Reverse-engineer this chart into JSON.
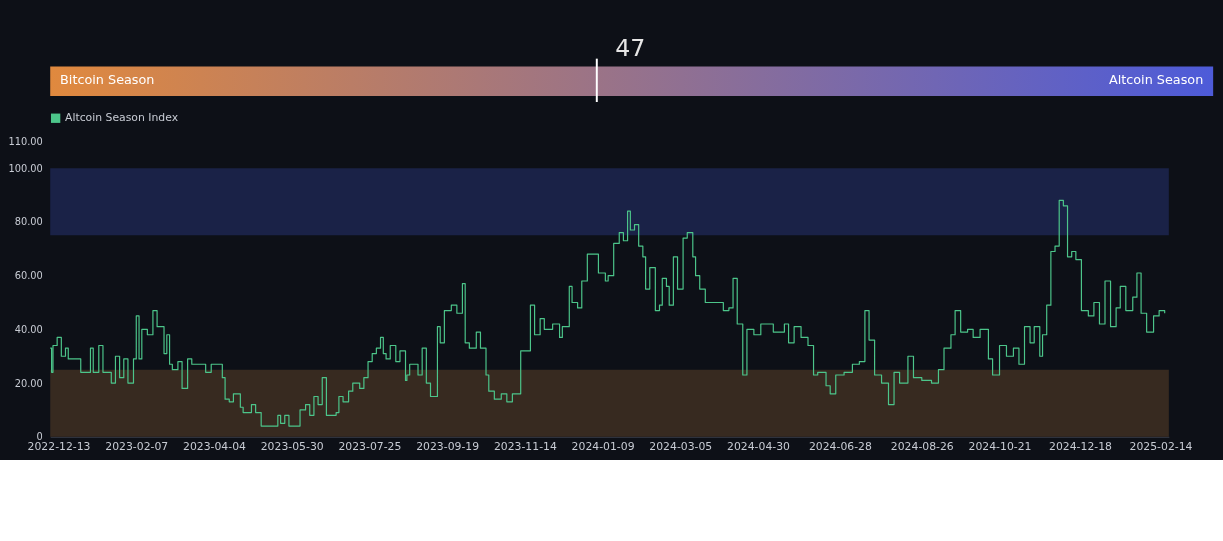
{
  "chart_data": [
    {
      "type": "other",
      "values": [
        47
      ],
      "value_labels": [
        "47"
      ],
      "annotations": [
        "Bitcoin Season",
        "Altcoin Season"
      ]
    },
    {
      "type": "step",
      "legend": "top",
      "grid": false,
      "line_style": "solid",
      "xlim": [
        "2022-12-07",
        "2025-02-20"
      ],
      "xticks": [
        "2022-12-13",
        "2023-02-07",
        "2023-04-04",
        "2023-05-30",
        "2023-07-25",
        "2023-09-19",
        "2023-11-14",
        "2024-01-09",
        "2024-03-05",
        "2024-04-30",
        "2024-06-28",
        "2024-08-26",
        "2024-10-21",
        "2024-12-18",
        "2025-02-14"
      ],
      "ylim": [
        0,
        110
      ],
      "yticks": [
        {
          "value": 0,
          "label": "0"
        },
        {
          "value": 20,
          "label": "20.00"
        },
        {
          "value": 40,
          "label": "40.00"
        },
        {
          "value": 60,
          "label": "60.00"
        },
        {
          "value": 80,
          "label": "80.00"
        },
        {
          "value": 100,
          "label": "100.00"
        },
        {
          "value": 110,
          "label": "110.00"
        }
      ],
      "bands": [
        {
          "axis": "y",
          "from": 75,
          "to": 100,
          "color": "#1a2247"
        },
        {
          "axis": "y",
          "from": 0,
          "to": 25,
          "color": "#372a20"
        }
      ],
      "series": [
        {
          "name": "Altcoin Season Index",
          "color": "#4cc58a",
          "x": [
            "2022-12-07",
            "2022-12-08",
            "2022-12-09",
            "2022-12-12",
            "2022-12-15",
            "2022-12-18",
            "2022-12-20",
            "2022-12-27",
            "2022-12-29",
            "2023-01-03",
            "2023-01-05",
            "2023-01-07",
            "2023-01-11",
            "2023-01-14",
            "2023-01-17",
            "2023-01-20",
            "2023-01-23",
            "2023-01-26",
            "2023-01-29",
            "2023-02-01",
            "2023-02-05",
            "2023-02-07",
            "2023-02-09",
            "2023-02-11",
            "2023-02-15",
            "2023-02-19",
            "2023-02-22",
            "2023-02-25",
            "2023-02-27",
            "2023-03-01",
            "2023-03-03",
            "2023-03-05",
            "2023-03-09",
            "2023-03-12",
            "2023-03-16",
            "2023-03-19",
            "2023-03-26",
            "2023-03-29",
            "2023-04-02",
            "2023-04-07",
            "2023-04-10",
            "2023-04-12",
            "2023-04-15",
            "2023-04-18",
            "2023-04-23",
            "2023-04-25",
            "2023-05-01",
            "2023-05-04",
            "2023-05-08",
            "2023-05-18",
            "2023-05-20",
            "2023-05-22",
            "2023-05-25",
            "2023-05-28",
            "2023-06-03",
            "2023-06-05",
            "2023-06-09",
            "2023-06-12",
            "2023-06-15",
            "2023-06-18",
            "2023-06-21",
            "2023-06-24",
            "2023-07-01",
            "2023-07-03",
            "2023-07-06",
            "2023-07-10",
            "2023-07-13",
            "2023-07-18",
            "2023-07-21",
            "2023-07-24",
            "2023-07-27",
            "2023-07-30",
            "2023-08-02",
            "2023-08-04",
            "2023-08-06",
            "2023-08-09",
            "2023-08-13",
            "2023-08-16",
            "2023-08-20",
            "2023-08-21",
            "2023-08-23",
            "2023-08-29",
            "2023-09-01",
            "2023-09-04",
            "2023-09-07",
            "2023-09-12",
            "2023-09-14",
            "2023-09-17",
            "2023-09-22",
            "2023-09-26",
            "2023-09-30",
            "2023-10-02",
            "2023-10-05",
            "2023-10-10",
            "2023-10-13",
            "2023-10-17",
            "2023-10-19",
            "2023-10-23",
            "2023-10-28",
            "2023-11-01",
            "2023-11-05",
            "2023-11-09",
            "2023-11-11",
            "2023-11-18",
            "2023-11-21",
            "2023-11-25",
            "2023-11-28",
            "2023-12-04",
            "2023-12-09",
            "2023-12-11",
            "2023-12-16",
            "2023-12-18",
            "2023-12-22",
            "2023-12-25",
            "2023-12-29",
            "2024-01-03",
            "2024-01-06",
            "2024-01-11",
            "2024-01-13",
            "2024-01-17",
            "2024-01-21",
            "2024-01-24",
            "2024-01-27",
            "2024-01-29",
            "2024-02-01",
            "2024-02-04",
            "2024-02-07",
            "2024-02-09",
            "2024-02-12",
            "2024-02-16",
            "2024-02-19",
            "2024-02-21",
            "2024-02-24",
            "2024-02-26",
            "2024-02-29",
            "2024-03-03",
            "2024-03-07",
            "2024-03-10",
            "2024-03-14",
            "2024-03-16",
            "2024-03-19",
            "2024-03-23",
            "2024-03-30",
            "2024-04-05",
            "2024-04-09",
            "2024-04-12",
            "2024-04-15",
            "2024-04-19",
            "2024-04-22",
            "2024-04-27",
            "2024-05-02",
            "2024-05-11",
            "2024-05-19",
            "2024-05-22",
            "2024-05-26",
            "2024-05-31",
            "2024-06-05",
            "2024-06-09",
            "2024-06-12",
            "2024-06-18",
            "2024-06-21",
            "2024-06-25",
            "2024-07-01",
            "2024-07-07",
            "2024-07-12",
            "2024-07-16",
            "2024-07-19",
            "2024-07-23",
            "2024-07-28",
            "2024-08-02",
            "2024-08-06",
            "2024-08-10",
            "2024-08-16",
            "2024-08-20",
            "2024-08-26",
            "2024-09-02",
            "2024-09-07",
            "2024-09-11",
            "2024-09-16",
            "2024-09-19",
            "2024-09-23",
            "2024-09-28",
            "2024-10-02",
            "2024-10-07",
            "2024-10-13",
            "2024-10-16",
            "2024-10-21",
            "2024-10-26",
            "2024-10-31",
            "2024-11-04",
            "2024-11-08",
            "2024-11-12",
            "2024-11-15",
            "2024-11-19",
            "2024-11-21",
            "2024-11-24",
            "2024-11-27",
            "2024-11-30",
            "2024-12-03",
            "2024-12-06",
            "2024-12-09",
            "2024-12-12",
            "2024-12-15",
            "2024-12-19",
            "2024-12-24",
            "2024-12-28",
            "2025-01-01",
            "2025-01-05",
            "2025-01-09",
            "2025-01-13",
            "2025-01-16",
            "2025-01-20",
            "2025-01-25",
            "2025-01-28",
            "2025-01-31",
            "2025-02-04",
            "2025-02-09",
            "2025-02-13",
            "2025-02-17"
          ],
          "values": [
            33,
            24,
            34,
            37,
            30,
            33,
            29,
            29,
            24,
            24,
            33,
            24,
            34,
            24,
            24,
            20,
            30,
            22,
            29,
            20,
            29,
            45,
            29,
            40,
            38,
            47,
            41,
            41,
            31,
            38,
            27,
            25,
            28,
            18,
            29,
            27,
            27,
            24,
            27,
            27,
            22,
            14,
            13,
            16,
            11,
            9,
            12,
            9,
            4,
            4,
            8,
            5,
            8,
            4,
            4,
            10,
            12,
            8,
            15,
            12,
            22,
            8,
            9,
            15,
            13,
            17,
            20,
            18,
            22,
            28,
            31,
            33,
            37,
            31,
            29,
            34,
            28,
            32,
            21,
            23,
            27,
            23,
            33,
            20,
            15,
            41,
            35,
            47,
            49,
            46,
            57,
            35,
            33,
            39,
            33,
            23,
            17,
            14,
            16,
            13,
            16,
            16,
            32,
            49,
            38,
            44,
            40,
            42,
            37,
            41,
            56,
            50,
            48,
            58,
            68,
            68,
            61,
            58,
            60,
            72,
            76,
            73,
            84,
            77,
            79,
            71,
            67,
            55,
            63,
            47,
            49,
            59,
            56,
            49,
            67,
            55,
            74,
            76,
            67,
            60,
            55,
            50,
            50,
            47,
            48,
            59,
            42,
            23,
            40,
            38,
            42,
            39,
            42,
            35,
            41,
            37,
            34,
            23,
            24,
            19,
            16,
            23,
            24,
            27,
            28,
            47,
            36,
            23,
            20,
            12,
            24,
            20,
            30,
            22,
            21,
            20,
            25,
            33,
            38,
            47,
            39,
            40,
            37,
            40,
            29,
            23,
            34,
            30,
            33,
            27,
            41,
            35,
            41,
            30,
            38,
            49,
            69,
            71,
            88,
            86,
            67,
            69,
            66,
            47,
            45,
            50,
            42,
            58,
            41,
            48,
            56,
            47,
            52,
            61,
            46,
            39,
            45,
            47,
            46
          ]
        }
      ]
    }
  ]
}
